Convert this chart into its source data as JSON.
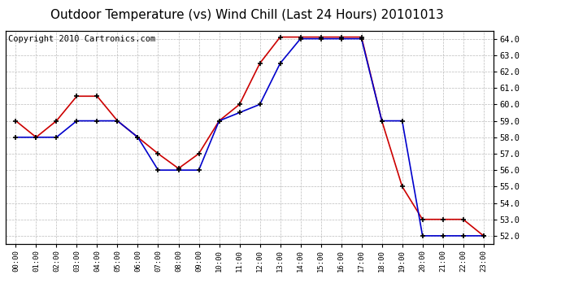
{
  "title": "Outdoor Temperature (vs) Wind Chill (Last 24 Hours) 20101013",
  "copyright_text": "Copyright 2010 Cartronics.com",
  "x_labels": [
    "00:00",
    "01:00",
    "02:00",
    "03:00",
    "04:00",
    "05:00",
    "06:00",
    "07:00",
    "08:00",
    "09:00",
    "10:00",
    "11:00",
    "12:00",
    "13:00",
    "14:00",
    "15:00",
    "16:00",
    "17:00",
    "18:00",
    "19:00",
    "20:00",
    "21:00",
    "22:00",
    "23:00"
  ],
  "outdoor_temp": [
    59.0,
    58.0,
    59.0,
    60.5,
    60.5,
    59.0,
    58.0,
    57.0,
    56.1,
    57.0,
    59.0,
    60.0,
    62.5,
    64.1,
    64.1,
    64.1,
    64.1,
    64.1,
    59.0,
    55.0,
    53.0,
    53.0,
    53.0,
    52.0
  ],
  "wind_chill": [
    58.0,
    58.0,
    58.0,
    59.0,
    59.0,
    59.0,
    58.0,
    56.0,
    56.0,
    56.0,
    59.0,
    59.5,
    60.0,
    62.5,
    64.0,
    64.0,
    64.0,
    64.0,
    59.0,
    59.0,
    52.0,
    52.0,
    52.0,
    52.0
  ],
  "ylim": [
    51.5,
    64.5
  ],
  "yticks": [
    52.0,
    53.0,
    54.0,
    55.0,
    56.0,
    57.0,
    58.0,
    59.0,
    60.0,
    61.0,
    62.0,
    63.0,
    64.0
  ],
  "outdoor_color": "#cc0000",
  "windchill_color": "#0000cc",
  "bg_color": "#ffffff",
  "grid_color": "#bbbbbb",
  "title_fontsize": 11,
  "copyright_fontsize": 7.5
}
